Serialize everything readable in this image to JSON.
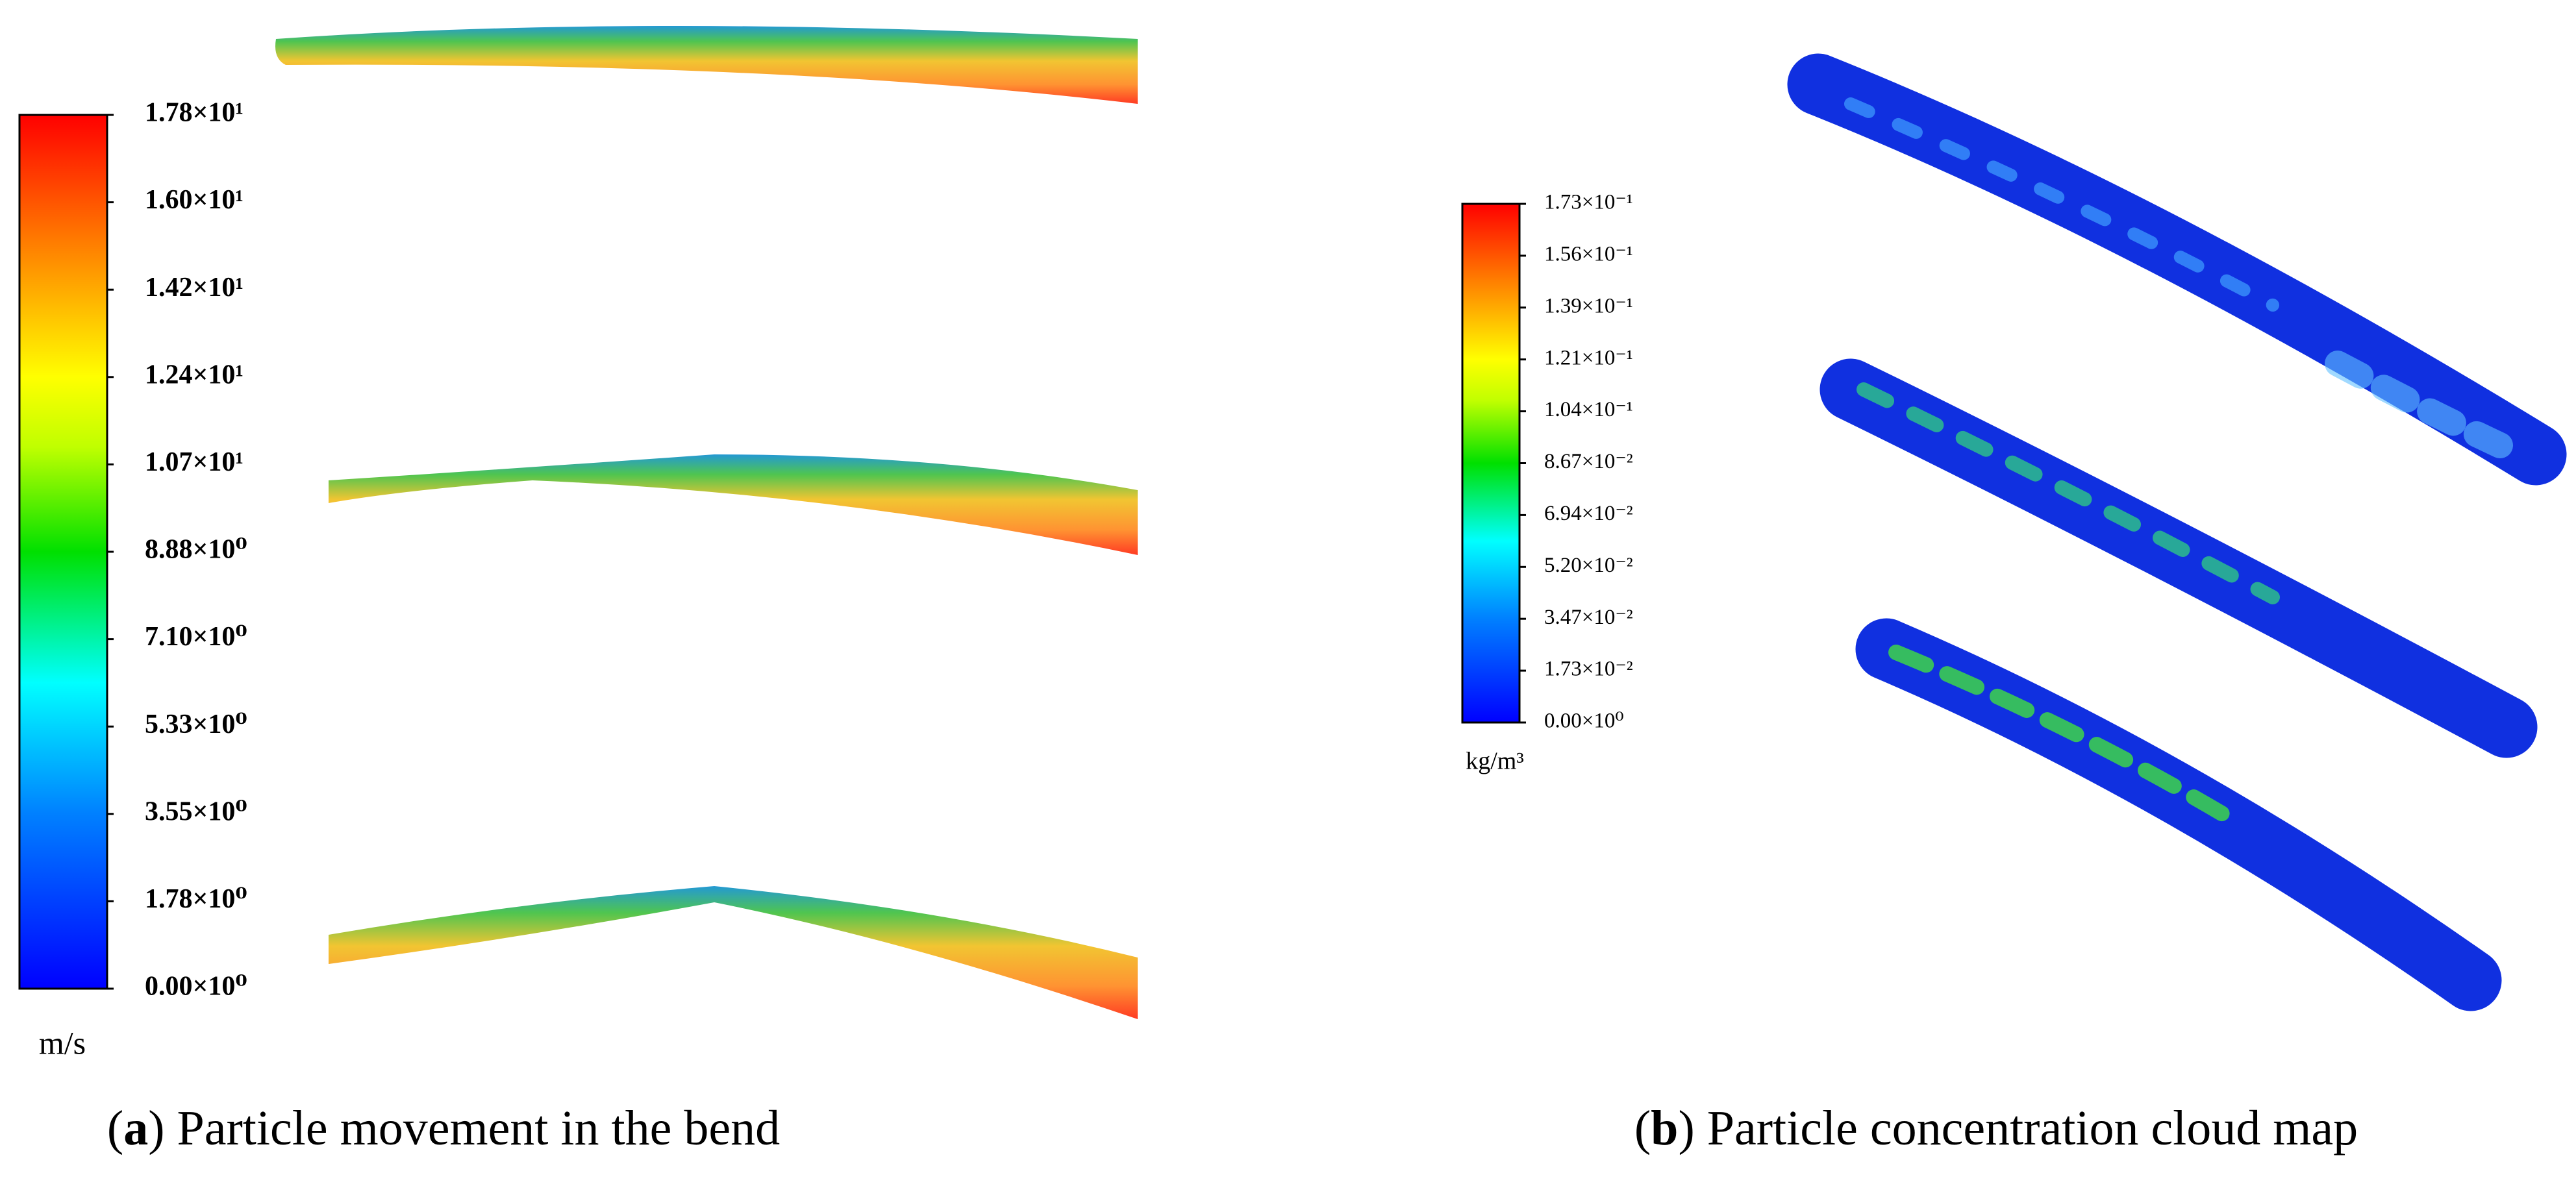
{
  "panels": [
    {
      "colorbar": {
        "labels": [
          "1.78×10¹",
          "1.60×10¹",
          "1.42×10¹",
          "1.24×10¹",
          "1.07×10¹",
          "8.88×10⁰",
          "7.10×10⁰",
          "5.33×10⁰",
          "3.55×10⁰",
          "1.78×10⁰",
          "0.00×10⁰"
        ],
        "unit": "m/s"
      },
      "caption": {
        "open": "(",
        "label": "a",
        "text": ") Particle movement in the bend"
      }
    },
    {
      "colorbar": {
        "labels": [
          "1.73×10⁻¹",
          "1.56×10⁻¹",
          "1.39×10⁻¹",
          "1.21×10⁻¹",
          "1.04×10⁻¹",
          "8.67×10⁻²",
          "6.94×10⁻²",
          "5.20×10⁻²",
          "3.47×10⁻²",
          "1.73×10⁻²",
          "0.00×10⁰"
        ],
        "unit": "kg/m³"
      },
      "caption": {
        "open": "(",
        "label": "b",
        "text": ") Particle concentration cloud map"
      }
    }
  ]
}
